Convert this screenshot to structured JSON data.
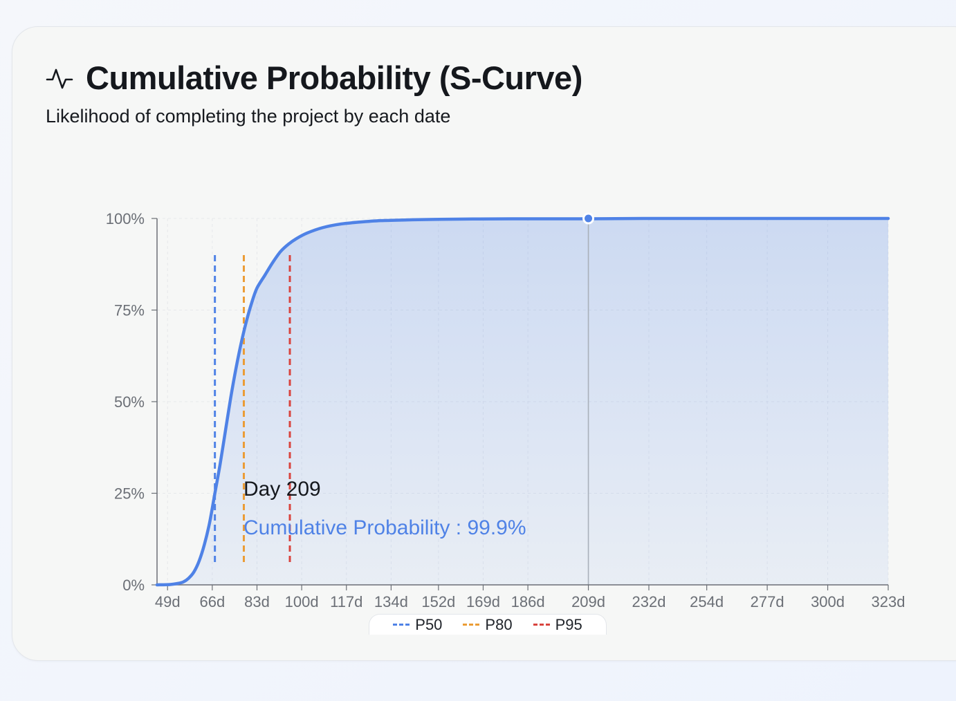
{
  "header": {
    "title": "Cumulative Probability (S-Curve)",
    "subtitle": "Likelihood of completing the project by each date",
    "icon": "activity-icon"
  },
  "colors": {
    "curve": "#4f82e6",
    "p50": "#4f82e6",
    "p80": "#eb9c35",
    "p95": "#d9443e",
    "crosshair": "#a9b0ba"
  },
  "chart_data": {
    "type": "area",
    "xlabel": "",
    "ylabel": "",
    "x_ticks": [
      "49d",
      "66d",
      "83d",
      "100d",
      "117d",
      "134d",
      "152d",
      "169d",
      "186d",
      "209d",
      "232d",
      "254d",
      "277d",
      "300d",
      "323d"
    ],
    "y_ticks": [
      "0%",
      "25%",
      "50%",
      "75%",
      "100%"
    ],
    "xlim": [
      45,
      323
    ],
    "ylim": [
      0,
      100
    ],
    "grid": true,
    "series": [
      {
        "name": "Cumulative Probability",
        "x": [
          45,
          50,
          53,
          55,
          57,
          59,
          61,
          63,
          65,
          67,
          69,
          71,
          73,
          75,
          77,
          79,
          81,
          83,
          86,
          89,
          92,
          95,
          98,
          102,
          108,
          115,
          122,
          130,
          140,
          150,
          165,
          180,
          200,
          209,
          230,
          260,
          300,
          323
        ],
        "y": [
          0,
          0.1,
          0.4,
          0.8,
          1.8,
          3.5,
          6.5,
          11,
          17,
          25,
          33,
          42,
          51,
          59,
          66,
          72,
          77,
          81,
          84.5,
          88,
          91,
          93,
          94.5,
          96,
          97.5,
          98.5,
          99,
          99.4,
          99.6,
          99.75,
          99.85,
          99.9,
          99.9,
          99.9,
          100,
          100,
          100,
          100
        ]
      }
    ],
    "reference_lines": [
      {
        "name": "P50",
        "x": 67
      },
      {
        "name": "P80",
        "x": 78
      },
      {
        "name": "P95",
        "x": 95.5
      }
    ],
    "legend": [
      "P50",
      "P80",
      "P95"
    ],
    "legend_position": "bottom",
    "tooltip": {
      "x": 209,
      "y": 99.9,
      "title": "Day 209",
      "line": "Cumulative Probability : 99.9%"
    }
  }
}
